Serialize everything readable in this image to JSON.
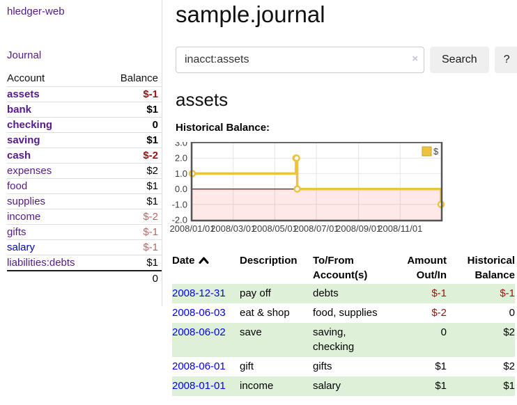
{
  "app": {
    "brand": "hledger-web",
    "nav_journal": "Journal"
  },
  "sidebar": {
    "col_account": "Account",
    "col_balance": "Balance",
    "accounts": [
      {
        "name": "assets",
        "balance": "$-1",
        "depth": 1,
        "bold": true,
        "negative": true,
        "muted": false,
        "unvisited": false
      },
      {
        "name": "bank",
        "balance": "$1",
        "depth": 2,
        "bold": true,
        "negative": false,
        "muted": false,
        "unvisited": false
      },
      {
        "name": "checking",
        "balance": "0",
        "depth": 3,
        "bold": true,
        "negative": false,
        "muted": false,
        "unvisited": false
      },
      {
        "name": "saving",
        "balance": "$1",
        "depth": 3,
        "bold": true,
        "negative": false,
        "muted": false,
        "unvisited": false
      },
      {
        "name": "cash",
        "balance": "$-2",
        "depth": 2,
        "bold": true,
        "negative": true,
        "muted": false,
        "unvisited": false
      },
      {
        "name": "expenses",
        "balance": "$2",
        "depth": 1,
        "bold": false,
        "negative": false,
        "muted": false,
        "unvisited": false
      },
      {
        "name": "food",
        "balance": "$1",
        "depth": 2,
        "bold": false,
        "negative": false,
        "muted": false,
        "unvisited": false
      },
      {
        "name": "supplies",
        "balance": "$1",
        "depth": 2,
        "bold": false,
        "negative": false,
        "muted": false,
        "unvisited": false
      },
      {
        "name": "income",
        "balance": "$-2",
        "depth": 1,
        "bold": false,
        "negative": true,
        "muted": true,
        "unvisited": false
      },
      {
        "name": "gifts",
        "balance": "$-1",
        "depth": 2,
        "bold": false,
        "negative": true,
        "muted": true,
        "unvisited": false
      },
      {
        "name": "salary",
        "balance": "$-1",
        "depth": 2,
        "bold": false,
        "negative": true,
        "muted": true,
        "unvisited": true
      },
      {
        "name": "liabilities:debts",
        "balance": "$1",
        "depth": 1,
        "bold": false,
        "negative": false,
        "muted": false,
        "unvisited": false
      }
    ],
    "total": "0"
  },
  "header": {
    "title": "sample.journal"
  },
  "search": {
    "value": "inacct:assets",
    "clear_icon": "×",
    "button": "Search",
    "help_button": "?"
  },
  "main": {
    "account_heading": "assets",
    "chart_label": "Historical Balance:",
    "register": {
      "headers": {
        "date": "Date",
        "description": "Description",
        "tofrom": "To/From Account(s)",
        "amount": "Amount Out/In",
        "balance": "Historical Balance"
      },
      "rows": [
        {
          "date": "2008-12-31",
          "description": "pay off",
          "accounts": "debts",
          "amount": "$-1",
          "balance": "$-1",
          "amount_neg": true,
          "balance_neg": true
        },
        {
          "date": "2008-06-03",
          "description": "eat & shop",
          "accounts": "food, supplies",
          "amount": "$-2",
          "balance": "0",
          "amount_neg": true,
          "balance_neg": false
        },
        {
          "date": "2008-06-02",
          "description": "save",
          "accounts": "saving, checking",
          "amount": "0",
          "balance": "$2",
          "amount_neg": false,
          "balance_neg": false
        },
        {
          "date": "2008-06-01",
          "description": "gift",
          "accounts": "gifts",
          "amount": "$1",
          "balance": "$2",
          "amount_neg": false,
          "balance_neg": false
        },
        {
          "date": "2008-01-01",
          "description": "income",
          "accounts": "salary",
          "amount": "$1",
          "balance": "$1",
          "amount_neg": false,
          "balance_neg": false
        }
      ]
    }
  },
  "chart_data": {
    "type": "line",
    "step": true,
    "title": "Historical Balance",
    "series": [
      {
        "name": "$",
        "color": "#edc240",
        "points": [
          [
            "2008-01-01",
            1
          ],
          [
            "2008-06-01",
            2
          ],
          [
            "2008-06-02",
            2
          ],
          [
            "2008-06-03",
            0
          ],
          [
            "2008-12-31",
            -1
          ]
        ]
      }
    ],
    "x_ticks": [
      "2008/01/01",
      "2008/03/01",
      "2008/05/01",
      "2008/07/01",
      "2008/09/01",
      "2008/11/01"
    ],
    "y_ticks": [
      3.0,
      2.0,
      1.0,
      0.0,
      -1.0,
      -2.0
    ],
    "ylim": [
      -2,
      3
    ],
    "x_range_days": [
      "2008-01-01",
      "2008-12-31"
    ],
    "grid": true,
    "negative_region_color": "rgba(255,0,0,0.09)",
    "zero_line_color": "#9a0000",
    "legend": {
      "label": "$",
      "position": "top-right"
    }
  },
  "colors": {
    "link_purple": "#551a8b",
    "link_blue": "#0000d0",
    "date_link_blue": "#0000ee",
    "negative_red": "#991111",
    "negative_muted": "#bb6666",
    "row_green": "#dff0d8",
    "series_gold": "#edc240"
  }
}
